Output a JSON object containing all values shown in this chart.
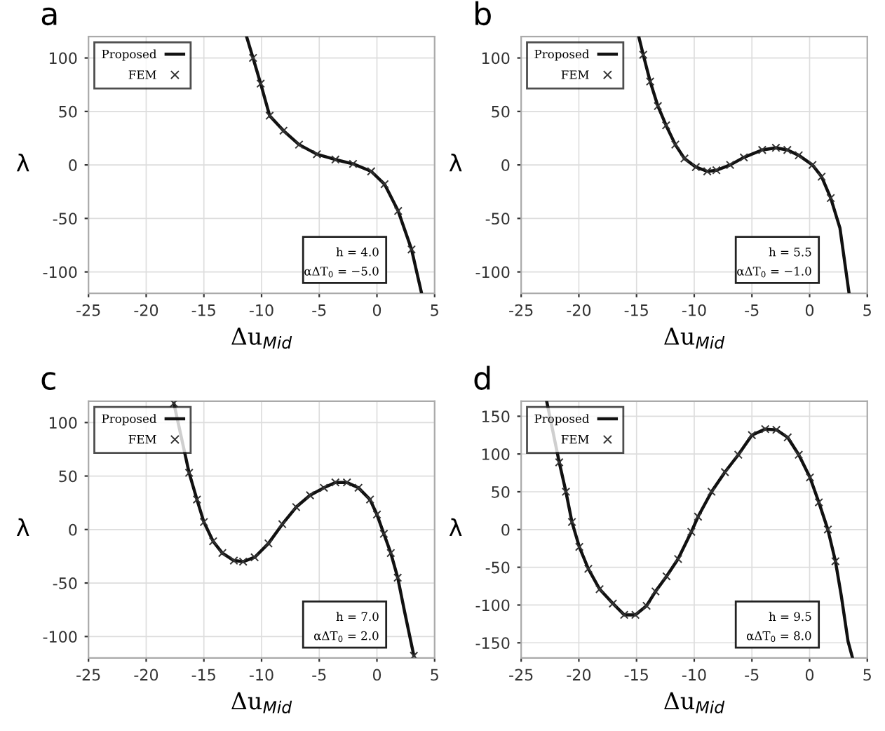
{
  "chart_data": [
    {
      "type": "line",
      "title": "a",
      "xlabel": "Δu$_{Mid}$",
      "ylabel": "λ",
      "xlim": [
        -25,
        5
      ],
      "ylim": [
        -120,
        120
      ],
      "xticks": [
        -25,
        -20,
        -15,
        -10,
        -5,
        0,
        5
      ],
      "yticks": [
        -100,
        -50,
        0,
        50,
        100
      ],
      "grid": true,
      "legend": "top left",
      "annotations": [
        "h = 4.0",
        "αΔT$_{0}$ = −5.0"
      ],
      "series": [
        {
          "name": "Proposed",
          "type": "line",
          "color": "#111111",
          "line_style": "solid",
          "marker": "none",
          "x": [
            -11.3,
            -10.74,
            -10.08,
            -9.3,
            -8.1,
            -6.75,
            -5.2,
            -3.6,
            -2.07,
            -0.5,
            0.66,
            1.84,
            3.0,
            3.87
          ],
          "values": [
            120,
            100,
            76,
            46,
            32,
            19,
            10,
            5,
            1,
            -6,
            -18,
            -43,
            -79,
            -120
          ]
        },
        {
          "name": "FEM",
          "type": "scatter",
          "color": "#333333",
          "marker": "cross",
          "x": [
            -10.74,
            -10.08,
            -9.3,
            -8.1,
            -6.75,
            -5.2,
            -3.6,
            -2.07,
            -0.5,
            0.66,
            1.84,
            3.0
          ],
          "values": [
            100,
            76,
            46,
            32,
            19,
            10,
            5,
            1,
            -6,
            -18,
            -43,
            -79
          ]
        }
      ]
    },
    {
      "type": "line",
      "title": "b",
      "xlabel": "Δu$_{Mid}$",
      "ylabel": "λ",
      "xlim": [
        -25,
        5
      ],
      "ylim": [
        -120,
        120
      ],
      "xticks": [
        -25,
        -20,
        -15,
        -10,
        -5,
        0,
        5
      ],
      "yticks": [
        -100,
        -50,
        0,
        50,
        100
      ],
      "grid": true,
      "legend": "top left",
      "annotations": [
        "h = 5.5",
        "αΔT$_{0}$ = −1.0"
      ],
      "series": [
        {
          "name": "Proposed",
          "type": "line",
          "color": "#111111",
          "line_style": "solid",
          "marker": "none",
          "x": [
            -14.81,
            -14.42,
            -13.82,
            -13.15,
            -12.44,
            -11.64,
            -10.85,
            -9.86,
            -8.87,
            -8.08,
            -6.89,
            -5.7,
            -4.11,
            -2.92,
            -1.93,
            -0.94,
            0.25,
            1.04,
            1.83,
            2.63,
            3.42
          ],
          "values": [
            120,
            103,
            78,
            55,
            37,
            19,
            6,
            -2,
            -6,
            -5,
            0,
            7,
            14,
            16,
            14,
            9,
            0,
            -11,
            -31,
            -59,
            -120
          ]
        },
        {
          "name": "FEM",
          "type": "scatter",
          "color": "#333333",
          "marker": "cross",
          "x": [
            -14.42,
            -13.82,
            -13.15,
            -12.44,
            -11.64,
            -10.85,
            -9.86,
            -8.87,
            -8.08,
            -6.89,
            -5.7,
            -4.11,
            -2.92,
            -1.93,
            -0.94,
            0.25,
            1.04,
            1.83
          ],
          "values": [
            103,
            78,
            55,
            37,
            19,
            6,
            -2,
            -6,
            -5,
            0,
            7,
            14,
            16,
            14,
            9,
            0,
            -11,
            -31
          ]
        }
      ]
    },
    {
      "type": "line",
      "title": "c",
      "xlabel": "Δu$_{Mid}$",
      "ylabel": "λ",
      "xlim": [
        -25,
        5
      ],
      "ylim": [
        -120,
        120
      ],
      "xticks": [
        -25,
        -20,
        -15,
        -10,
        -5,
        0,
        5
      ],
      "yticks": [
        -100,
        -50,
        0,
        50,
        100
      ],
      "grid": true,
      "legend": "top left",
      "annotations": [
        "h = 7.0",
        "αΔT$_{0}$ = 2.0"
      ],
      "series": [
        {
          "name": "Proposed",
          "type": "line",
          "color": "#111111",
          "line_style": "solid",
          "marker": "none",
          "x": [
            -17.6,
            -16.28,
            -15.6,
            -15.0,
            -14.2,
            -13.4,
            -12.4,
            -11.6,
            -10.6,
            -9.4,
            -8.2,
            -7.0,
            -5.8,
            -4.6,
            -3.6,
            -2.6,
            -1.6,
            -0.6,
            0,
            0.6,
            1.2,
            1.8,
            2.4,
            3.2
          ],
          "values": [
            118,
            53,
            28,
            7,
            -11,
            -22,
            -29,
            -30,
            -26,
            -13,
            5,
            21,
            32,
            39,
            44,
            44,
            39,
            28,
            14,
            -4,
            -22,
            -45,
            -77,
            -118
          ]
        },
        {
          "name": "FEM",
          "type": "scatter",
          "color": "#333333",
          "marker": "cross",
          "x": [
            -17.6,
            -16.28,
            -15.6,
            -15.0,
            -14.2,
            -13.4,
            -12.4,
            -11.6,
            -10.6,
            -9.4,
            -8.2,
            -7.0,
            -5.8,
            -4.6,
            -3.6,
            -2.6,
            -1.6,
            -0.6,
            0,
            0.6,
            1.2,
            1.8,
            3.2
          ],
          "values": [
            118,
            53,
            28,
            7,
            -11,
            -22,
            -29,
            -30,
            -26,
            -13,
            5,
            21,
            32,
            39,
            44,
            44,
            39,
            28,
            14,
            -4,
            -22,
            -45,
            -118
          ]
        }
      ]
    },
    {
      "type": "line",
      "title": "d",
      "xlabel": "Δu$_{Mid}$",
      "ylabel": "λ",
      "xlim": [
        -25,
        5
      ],
      "ylim": [
        -170,
        170
      ],
      "xticks": [
        -25,
        -20,
        -15,
        -10,
        -5,
        0,
        5
      ],
      "yticks": [
        -150,
        -100,
        -50,
        0,
        50,
        100,
        150
      ],
      "grid": true,
      "legend": "top left",
      "annotations": [
        "h = 9.5",
        "αΔT$_{0}$ = 8.0"
      ],
      "series": [
        {
          "name": "Proposed",
          "type": "line",
          "color": "#111111",
          "line_style": "solid",
          "marker": "none",
          "x": [
            -22.79,
            -21.7,
            -21.12,
            -20.6,
            -19.96,
            -19.18,
            -18.2,
            -17.05,
            -16.07,
            -15.1,
            -14.13,
            -13.36,
            -12.4,
            -11.4,
            -10.25,
            -9.67,
            -8.5,
            -7.34,
            -6.18,
            -5.0,
            -3.85,
            -2.88,
            -1.9,
            -0.94,
            0.03,
            0.8,
            1.58,
            2.24,
            2.75,
            3.33,
            3.72
          ],
          "values": [
            170,
            89,
            50,
            10,
            -23,
            -52,
            -79,
            -98,
            -113,
            -113,
            -101,
            -82,
            -62,
            -39,
            -3,
            17,
            50,
            76,
            99,
            125,
            133,
            132,
            122,
            99,
            69,
            36,
            0,
            -42,
            -88,
            -148,
            -170
          ]
        },
        {
          "name": "FEM",
          "type": "scatter",
          "color": "#333333",
          "marker": "cross",
          "x": [
            -21.7,
            -21.12,
            -20.6,
            -19.96,
            -19.18,
            -18.2,
            -17.05,
            -16.07,
            -15.1,
            -14.13,
            -13.36,
            -12.4,
            -11.4,
            -10.25,
            -9.67,
            -8.5,
            -7.34,
            -6.18,
            -5.0,
            -3.85,
            -2.88,
            -1.9,
            -0.94,
            0.03,
            0.8,
            1.58,
            2.24
          ],
          "values": [
            89,
            50,
            10,
            -23,
            -52,
            -79,
            -98,
            -113,
            -113,
            -101,
            -82,
            -62,
            -39,
            -3,
            17,
            50,
            76,
            99,
            125,
            133,
            132,
            122,
            99,
            69,
            36,
            0,
            -42
          ]
        }
      ]
    }
  ]
}
